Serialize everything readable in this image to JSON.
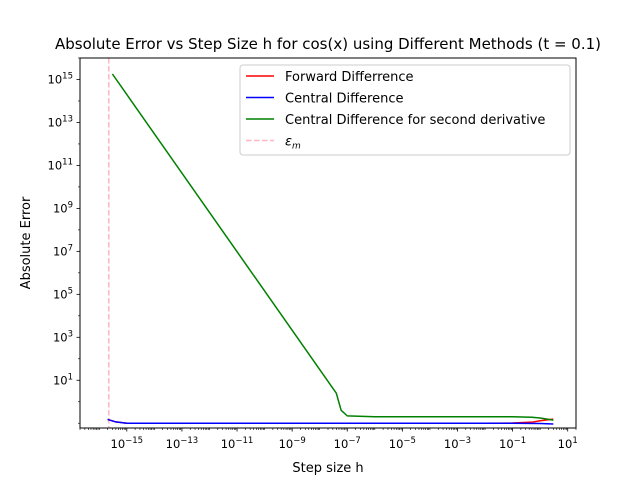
{
  "chart_data": {
    "type": "line",
    "title": "Absolute Error vs Step Size h for cos(x) using Different Methods (t = 0.1)",
    "xlabel": "Step size h",
    "ylabel": "Absolute Error",
    "xscale": "log",
    "yscale": "log",
    "xlim": [
      2e-17,
      20
    ],
    "ylim": [
      0.06,
      1e+16
    ],
    "x_ticks": [
      {
        "value": 1e-15,
        "base": "10",
        "exp": "−15"
      },
      {
        "value": 1e-13,
        "base": "10",
        "exp": "−13"
      },
      {
        "value": 1e-11,
        "base": "10",
        "exp": "−11"
      },
      {
        "value": 1e-09,
        "base": "10",
        "exp": "−9"
      },
      {
        "value": 1e-07,
        "base": "10",
        "exp": "−7"
      },
      {
        "value": 1e-05,
        "base": "10",
        "exp": "−5"
      },
      {
        "value": 0.001,
        "base": "10",
        "exp": "−3"
      },
      {
        "value": 0.1,
        "base": "10",
        "exp": "−1"
      },
      {
        "value": 10,
        "base": "10",
        "exp": "1"
      }
    ],
    "y_ticks": [
      {
        "value": 10,
        "base": "10",
        "exp": "1"
      },
      {
        "value": 1000,
        "base": "10",
        "exp": "3"
      },
      {
        "value": 100000,
        "base": "10",
        "exp": "5"
      },
      {
        "value": 10000000.0,
        "base": "10",
        "exp": "7"
      },
      {
        "value": 1000000000.0,
        "base": "10",
        "exp": "9"
      },
      {
        "value": 100000000000.0,
        "base": "10",
        "exp": "11"
      },
      {
        "value": 10000000000000.0,
        "base": "10",
        "exp": "13"
      },
      {
        "value": 1000000000000000.0,
        "base": "10",
        "exp": "15"
      }
    ],
    "grid": false,
    "legend_position": "top-right",
    "series": [
      {
        "name": "Forward Differrence",
        "color": "#ff0000",
        "points": [
          [
            2e-16,
            0.15
          ],
          [
            4e-16,
            0.115
          ],
          [
            1e-15,
            0.1
          ],
          [
            1e-13,
            0.1
          ],
          [
            1e-09,
            0.1
          ],
          [
            1e-05,
            0.1
          ],
          [
            0.01,
            0.1
          ],
          [
            0.1,
            0.102
          ],
          [
            0.5,
            0.112
          ],
          [
            1,
            0.13
          ],
          [
            3,
            0.155
          ]
        ]
      },
      {
        "name": "Central Difference",
        "color": "#0000ff",
        "points": [
          [
            2e-16,
            0.15
          ],
          [
            4e-16,
            0.115
          ],
          [
            1e-15,
            0.1
          ],
          [
            1e-13,
            0.1
          ],
          [
            1e-09,
            0.1
          ],
          [
            1e-05,
            0.1
          ],
          [
            0.01,
            0.1
          ],
          [
            0.1,
            0.1
          ],
          [
            1,
            0.097
          ],
          [
            3,
            0.092
          ]
        ]
      },
      {
        "name": "Central Difference for second derivative",
        "color": "#008000",
        "points": [
          [
            3e-16,
            1800000000000000.0
          ],
          [
            4e-08,
            2.5
          ],
          [
            6e-08,
            0.4
          ],
          [
            1e-07,
            0.22
          ],
          [
            1e-06,
            0.2
          ],
          [
            0.001,
            0.2
          ],
          [
            0.1,
            0.2
          ],
          [
            0.5,
            0.19
          ],
          [
            1,
            0.175
          ],
          [
            3,
            0.14
          ]
        ]
      }
    ],
    "vline": {
      "name": "εm",
      "legend_main": "ε",
      "legend_sub": "m",
      "x": 2.22e-16,
      "color": "#ffb6c1",
      "style": "dashed"
    }
  }
}
